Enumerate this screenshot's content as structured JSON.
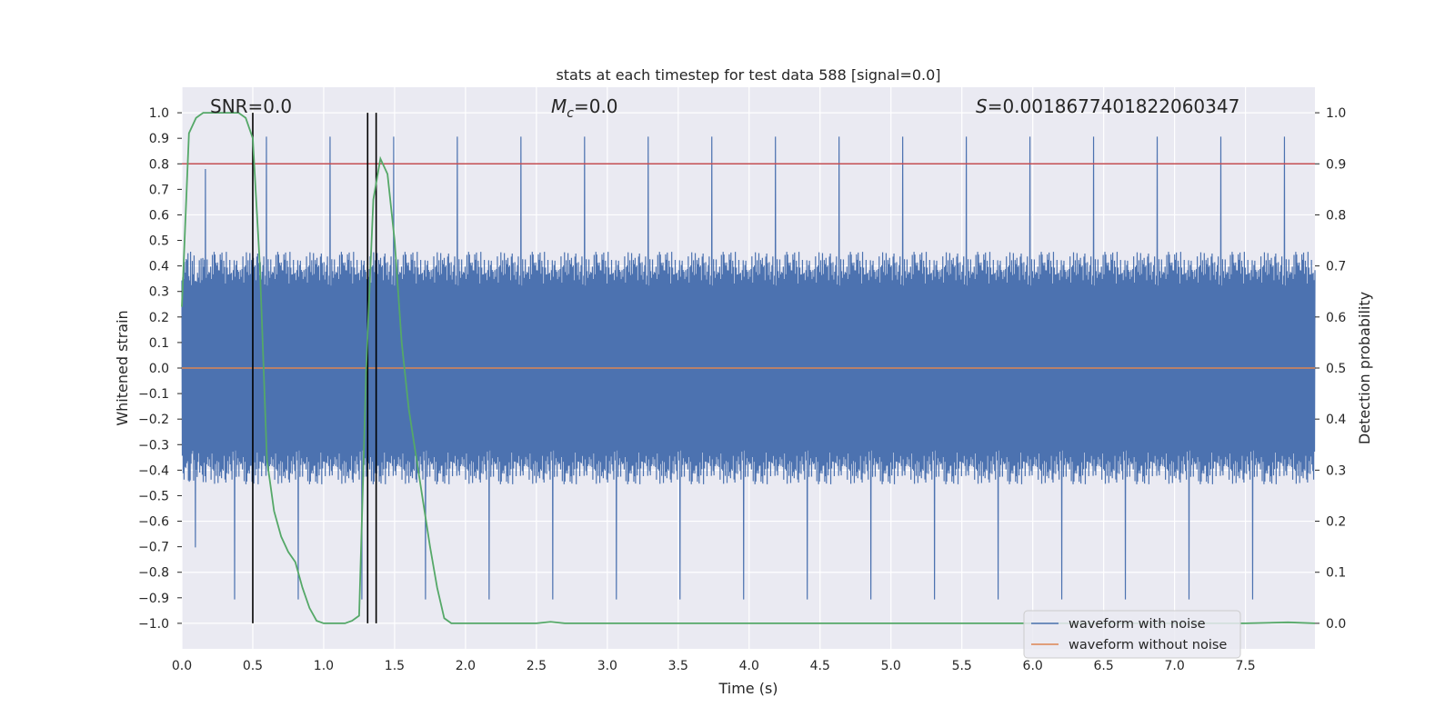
{
  "chart_data": {
    "type": "line",
    "title": "stats at each timestep for test data 588 [signal=0.0]",
    "xlabel": "Time (s)",
    "ylabel": "Whitened strain",
    "y2label": "Detection probability",
    "xlim": [
      0.0,
      7.99
    ],
    "ylim": [
      -1.1,
      1.1
    ],
    "y2lim": [
      -0.05,
      1.05
    ],
    "x_ticks": [
      "0.0",
      "0.5",
      "1.0",
      "1.5",
      "2.0",
      "2.5",
      "3.0",
      "3.5",
      "4.0",
      "4.5",
      "5.0",
      "5.5",
      "6.0",
      "6.5",
      "7.0",
      "7.5"
    ],
    "y_ticks": [
      "1.0",
      "0.9",
      "0.8",
      "0.7",
      "0.6",
      "0.5",
      "0.4",
      "0.3",
      "0.2",
      "0.1",
      "0.0",
      "−0.1",
      "−0.2",
      "−0.3",
      "−0.4",
      "−0.5",
      "−0.6",
      "−0.7",
      "−0.8",
      "−0.9",
      "−1.0"
    ],
    "y2_ticks": [
      "1.0",
      "0.9",
      "0.8",
      "0.7",
      "0.6",
      "0.5",
      "0.4",
      "0.3",
      "0.2",
      "0.1",
      "0.0"
    ],
    "grid": true,
    "background": "#eaeaf2",
    "annotations": {
      "snr": "SNR=0.0",
      "mc_symbol": "M",
      "mc_sub": "c",
      "mc_value": "=0.0",
      "s_symbol": "S",
      "s_value": "=0.0018677401822060347"
    },
    "threshold_line": {
      "y2": 0.9,
      "color": "#c44e52"
    },
    "vertical_markers": [
      0.5,
      1.31,
      1.37
    ],
    "series": [
      {
        "name": "waveform with noise",
        "color": "#4c72b0",
        "envelope": {
          "low_mean": -0.38,
          "high_mean": 0.38,
          "spike_max": 1.0
        }
      },
      {
        "name": "waveform without noise",
        "color": "#dd8452",
        "values_const": 0.0
      },
      {
        "color": "#55a868",
        "axis": "y2",
        "x": [
          0.0,
          0.05,
          0.1,
          0.15,
          0.2,
          0.25,
          0.3,
          0.35,
          0.4,
          0.45,
          0.5,
          0.55,
          0.6,
          0.65,
          0.7,
          0.75,
          0.8,
          0.85,
          0.9,
          0.95,
          1.0,
          1.05,
          1.1,
          1.15,
          1.2,
          1.25,
          1.3,
          1.35,
          1.4,
          1.45,
          1.5,
          1.55,
          1.6,
          1.65,
          1.7,
          1.75,
          1.8,
          1.85,
          1.9,
          1.95,
          2.0,
          2.5,
          2.6,
          2.7,
          3.0,
          4.0,
          5.0,
          6.0,
          7.0,
          7.5,
          7.8,
          7.99
        ],
        "values": [
          0.62,
          0.96,
          0.99,
          1.0,
          1.0,
          1.0,
          1.0,
          1.0,
          1.0,
          0.99,
          0.95,
          0.7,
          0.32,
          0.22,
          0.17,
          0.14,
          0.12,
          0.07,
          0.03,
          0.005,
          0.0,
          0.0,
          0.0,
          0.0,
          0.005,
          0.015,
          0.5,
          0.83,
          0.91,
          0.88,
          0.75,
          0.55,
          0.42,
          0.33,
          0.24,
          0.15,
          0.07,
          0.01,
          0.0,
          0.0,
          0.0,
          0.0,
          0.003,
          0.0,
          0.0,
          0.0,
          0.0,
          0.0,
          0.0,
          0.0,
          0.002,
          0.0
        ]
      }
    ],
    "legend": {
      "placement": "lower-right",
      "entries": [
        "waveform with noise",
        "waveform without noise"
      ]
    }
  }
}
